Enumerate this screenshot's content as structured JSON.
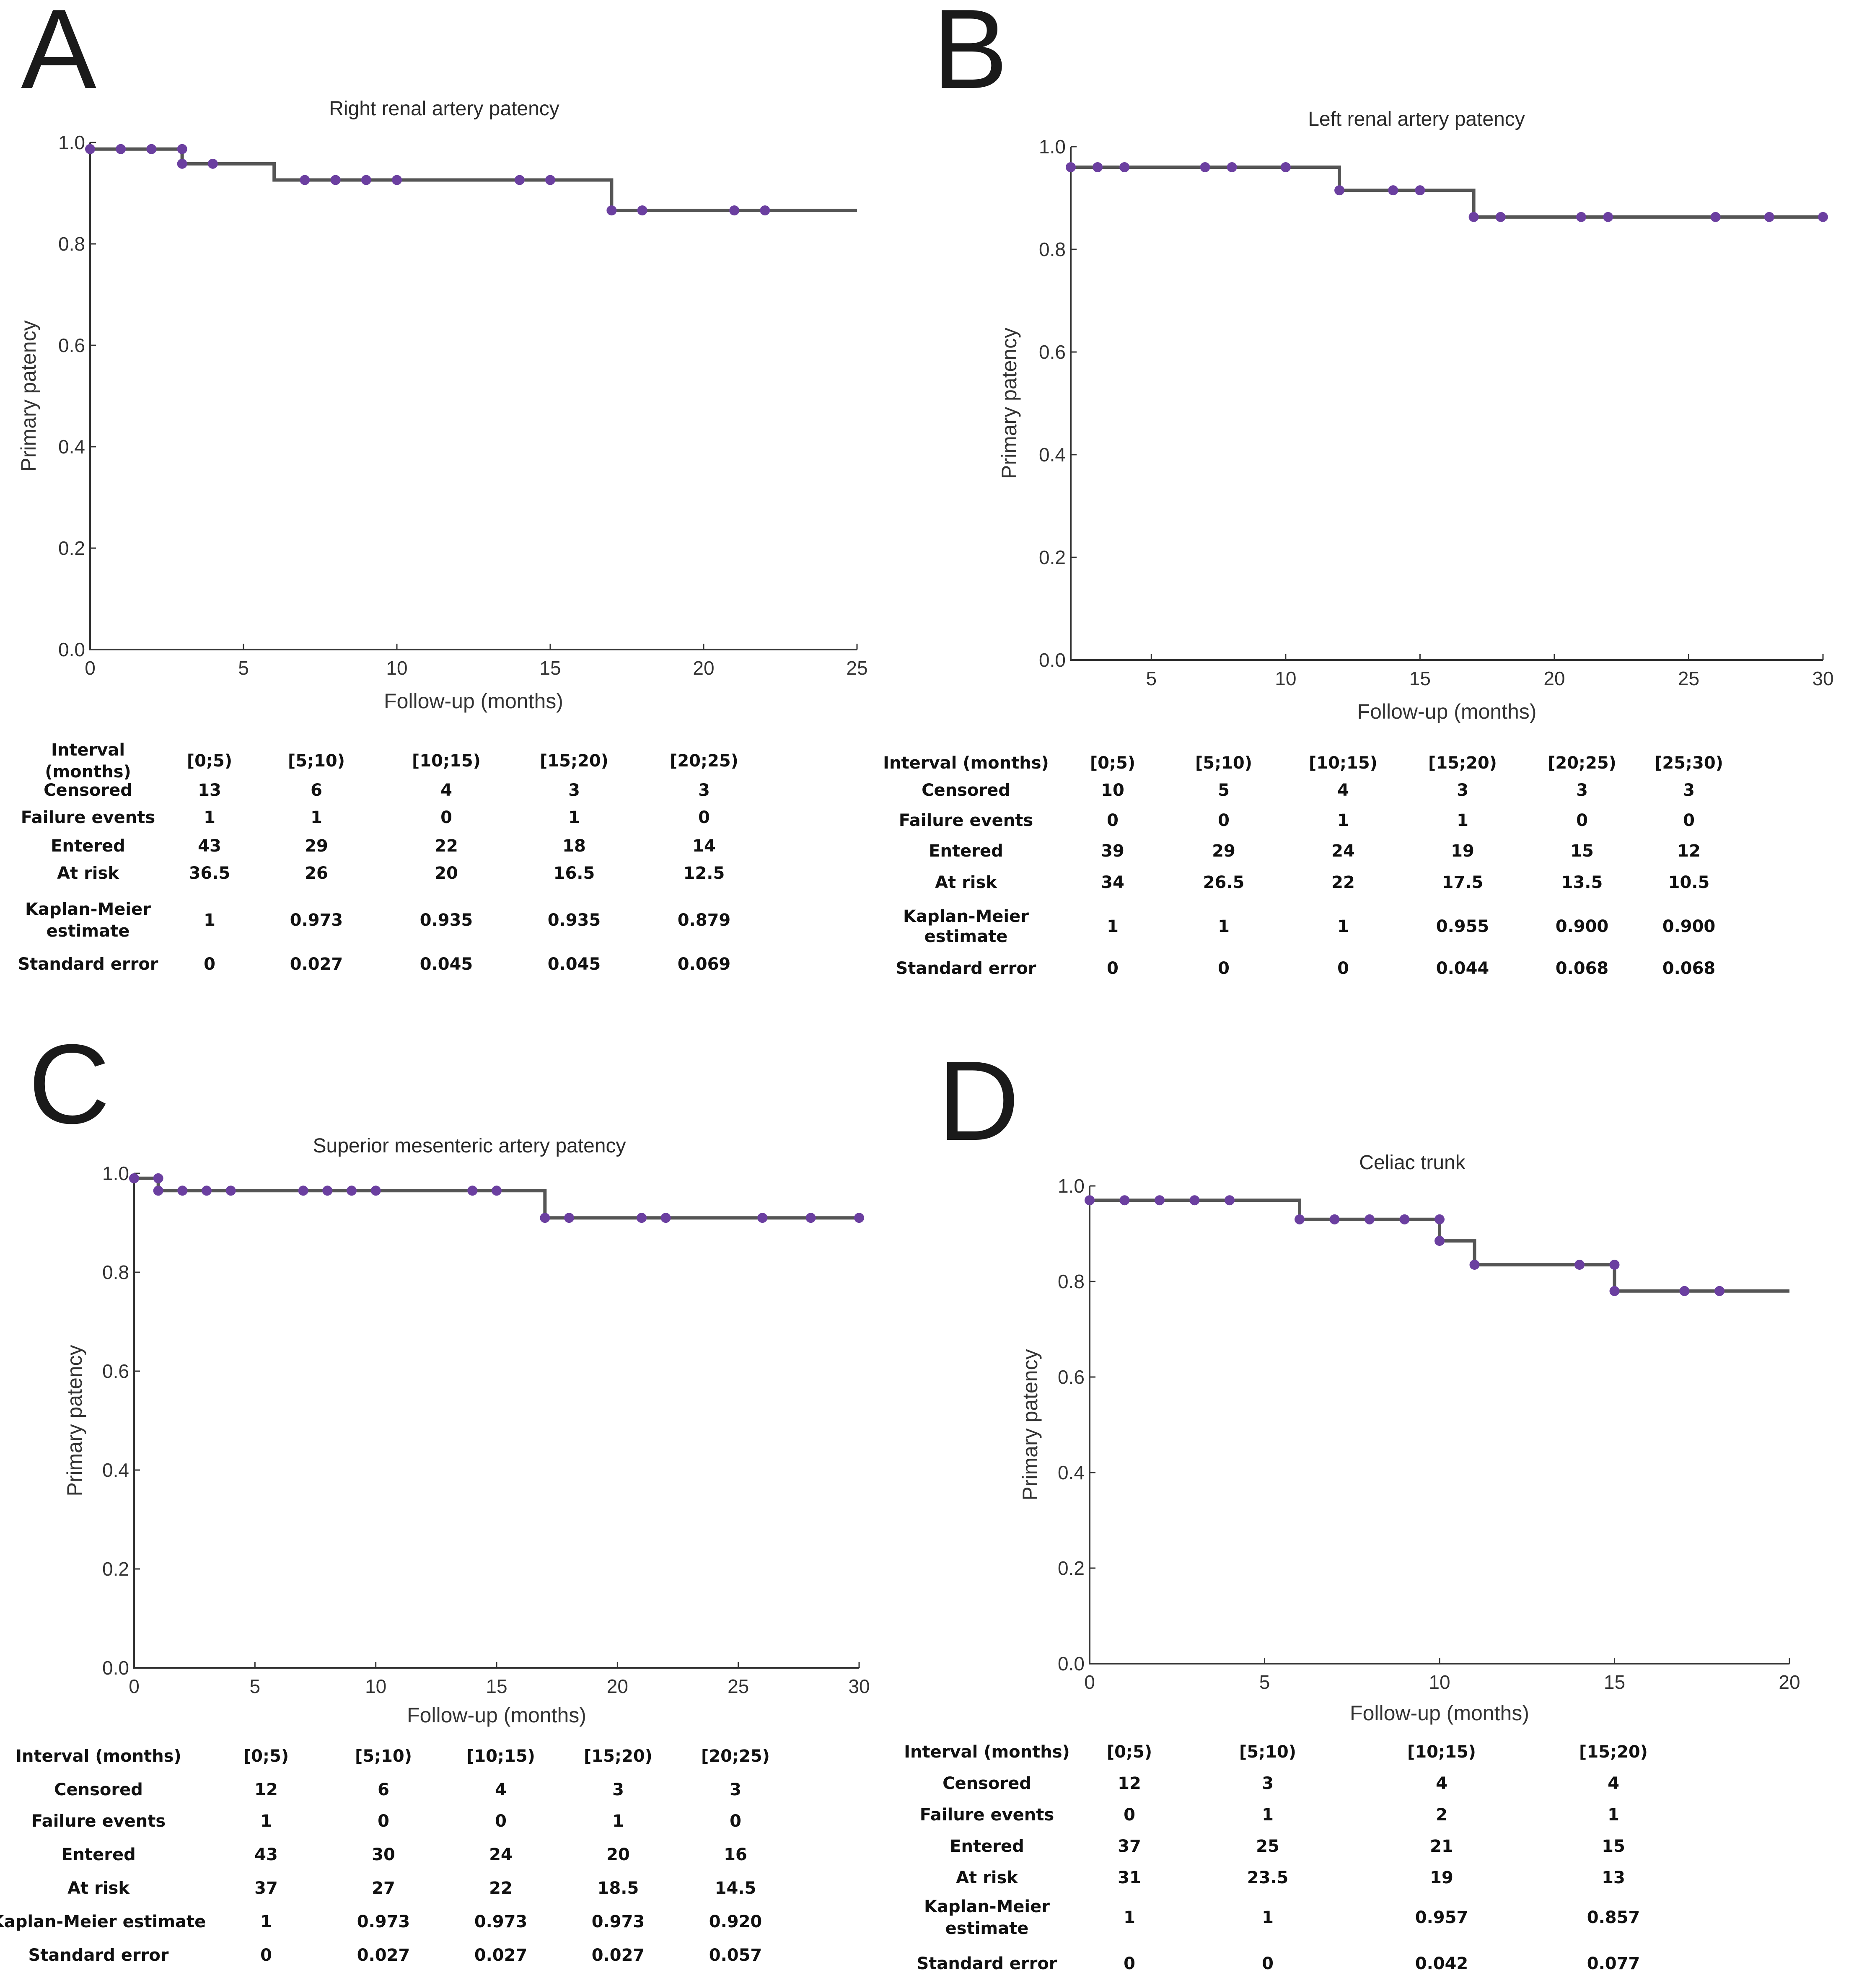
{
  "panels": [
    {
      "letter": "A",
      "title": "Right renal artery patency",
      "xlabel": "Follow-up (months)",
      "ylabel": "Primary patency",
      "chart_data": {
        "type": "line",
        "title": "Right renal artery patency",
        "xlabel": "Follow-up (months)",
        "ylabel": "Primary patency",
        "xlim": [
          0,
          25
        ],
        "ylim": [
          0,
          1
        ],
        "xticks": [
          "0",
          "5",
          "10",
          "15",
          "20",
          "25"
        ],
        "yticks": [
          "0.0",
          "0.2",
          "0.4",
          "0.6",
          "0.8",
          "1.0"
        ],
        "step_x": [
          0,
          3,
          6,
          17,
          25
        ],
        "step_y": [
          0.987,
          0.958,
          0.926,
          0.866,
          0.866
        ],
        "censored_x": [
          0,
          1,
          2,
          3,
          3,
          4,
          7,
          8,
          9,
          10,
          14,
          15,
          17,
          18,
          21,
          22
        ],
        "censored_y": [
          0.987,
          0.987,
          0.987,
          0.987,
          0.958,
          0.958,
          0.926,
          0.926,
          0.926,
          0.926,
          0.926,
          0.926,
          0.866,
          0.866,
          0.866,
          0.866
        ]
      },
      "table": {
        "row_labels": [
          "Interval\n(months)",
          "Censored",
          "Failure events",
          "Entered",
          "At risk",
          "Kaplan-Meier\nestimate",
          "Standard error"
        ],
        "columns": [
          "[0;5)",
          "[5;10)",
          "[10;15)",
          "[15;20)",
          "[20;25)"
        ],
        "rows": [
          [
            "13",
            "6",
            "4",
            "3",
            "3"
          ],
          [
            "1",
            "1",
            "0",
            "1",
            "0"
          ],
          [
            "43",
            "29",
            "22",
            "18",
            "14"
          ],
          [
            "36.5",
            "26",
            "20",
            "16.5",
            "12.5"
          ],
          [
            "1",
            "0.973",
            "0.935",
            "0.935",
            "0.879"
          ],
          [
            "0",
            "0.027",
            "0.045",
            "0.045",
            "0.069"
          ]
        ]
      }
    },
    {
      "letter": "B",
      "title": "Left renal artery patency",
      "xlabel": "Follow-up (months)",
      "ylabel": "Primary patency",
      "chart_data": {
        "type": "line",
        "title": "Left renal artery patency",
        "xlabel": "Follow-up (months)",
        "ylabel": "Primary patency",
        "xlim": [
          2,
          30
        ],
        "ylim": [
          0,
          1
        ],
        "xticks": [
          "5",
          "10",
          "15",
          "20",
          "25",
          "30"
        ],
        "yticks": [
          "0.0",
          "0.2",
          "0.4",
          "0.6",
          "0.8",
          "1.0"
        ],
        "step_x": [
          2,
          12,
          17,
          30
        ],
        "step_y": [
          0.96,
          0.915,
          0.863,
          0.863
        ],
        "censored_x": [
          2,
          3,
          4,
          7,
          8,
          10,
          12,
          14,
          15,
          17,
          18,
          21,
          22,
          26,
          28,
          30
        ],
        "censored_y": [
          0.96,
          0.96,
          0.96,
          0.96,
          0.96,
          0.96,
          0.915,
          0.915,
          0.915,
          0.863,
          0.863,
          0.863,
          0.863,
          0.863,
          0.863,
          0.863
        ]
      },
      "table": {
        "row_labels": [
          "Interval (months)",
          "Censored",
          "Failure events",
          "Entered",
          "At risk",
          "Kaplan-Meier\nestimate",
          "Standard error"
        ],
        "columns": [
          "[0;5)",
          "[5;10)",
          "[10;15)",
          "[15;20)",
          "[20;25)",
          "[25;30)"
        ],
        "rows": [
          [
            "10",
            "5",
            "4",
            "3",
            "3",
            "3"
          ],
          [
            "0",
            "0",
            "1",
            "1",
            "0",
            "0"
          ],
          [
            "39",
            "29",
            "24",
            "19",
            "15",
            "12"
          ],
          [
            "34",
            "26.5",
            "22",
            "17.5",
            "13.5",
            "10.5"
          ],
          [
            "1",
            "1",
            "1",
            "0.955",
            "0.900",
            "0.900"
          ],
          [
            "0",
            "0",
            "0",
            "0.044",
            "0.068",
            "0.068"
          ]
        ]
      }
    },
    {
      "letter": "C",
      "title": "Superior mesenteric artery patency",
      "xlabel": "Follow-up (months)",
      "ylabel": "Primary patency",
      "chart_data": {
        "type": "line",
        "title": "Superior mesenteric artery patency",
        "xlabel": "Follow-up (months)",
        "ylabel": "Primary patency",
        "xlim": [
          0,
          30
        ],
        "ylim": [
          0,
          1
        ],
        "xticks": [
          "0",
          "5",
          "10",
          "15",
          "20",
          "25",
          "30"
        ],
        "yticks": [
          "0.0",
          "0.2",
          "0.4",
          "0.6",
          "0.8",
          "1.0"
        ],
        "step_x": [
          0,
          1,
          17,
          30
        ],
        "step_y": [
          0.99,
          0.965,
          0.91,
          0.91
        ],
        "censored_x": [
          0,
          1,
          1,
          2,
          3,
          4,
          7,
          8,
          9,
          10,
          14,
          15,
          17,
          18,
          21,
          22,
          26,
          28,
          30
        ],
        "censored_y": [
          0.99,
          0.99,
          0.965,
          0.965,
          0.965,
          0.965,
          0.965,
          0.965,
          0.965,
          0.965,
          0.965,
          0.965,
          0.91,
          0.91,
          0.91,
          0.91,
          0.91,
          0.91,
          0.91
        ]
      },
      "table": {
        "row_labels": [
          "Interval (months)",
          "Censored",
          "Failure events",
          "Entered",
          "At risk",
          "Kaplan-Meier estimate",
          "Standard error"
        ],
        "columns": [
          "[0;5)",
          "[5;10)",
          "[10;15)",
          "[15;20)",
          "[20;25)"
        ],
        "rows": [
          [
            "12",
            "6",
            "4",
            "3",
            "3"
          ],
          [
            "1",
            "0",
            "0",
            "1",
            "0"
          ],
          [
            "43",
            "30",
            "24",
            "20",
            "16"
          ],
          [
            "37",
            "27",
            "22",
            "18.5",
            "14.5"
          ],
          [
            "1",
            "0.973",
            "0.973",
            "0.973",
            "0.920"
          ],
          [
            "0",
            "0.027",
            "0.027",
            "0.027",
            "0.057"
          ]
        ]
      }
    },
    {
      "letter": "D",
      "title": "Celiac trunk",
      "xlabel": "Follow-up (months)",
      "ylabel": "Primary patency",
      "chart_data": {
        "type": "line",
        "title": "Celiac trunk",
        "xlabel": "Follow-up (months)",
        "ylabel": "Primary patency",
        "xlim": [
          0,
          20
        ],
        "ylim": [
          0,
          1
        ],
        "xticks": [
          "0",
          "5",
          "10",
          "15",
          "20"
        ],
        "yticks": [
          "0.0",
          "0.2",
          "0.4",
          "0.6",
          "0.8",
          "1.0"
        ],
        "step_x": [
          0,
          6,
          10,
          11,
          15,
          20
        ],
        "step_y": [
          0.97,
          0.93,
          0.885,
          0.835,
          0.78,
          0.78
        ],
        "censored_x": [
          0,
          1,
          2,
          3,
          4,
          6,
          7,
          8,
          9,
          10,
          10,
          11,
          14,
          15,
          15,
          17,
          18
        ],
        "censored_y": [
          0.97,
          0.97,
          0.97,
          0.97,
          0.97,
          0.93,
          0.93,
          0.93,
          0.93,
          0.93,
          0.885,
          0.835,
          0.835,
          0.835,
          0.78,
          0.78,
          0.78
        ]
      },
      "table": {
        "row_labels": [
          "Interval (months)",
          "Censored",
          "Failure events",
          "Entered",
          "At risk",
          "Kaplan-Meier\nestimate",
          "Standard error"
        ],
        "columns": [
          "[0;5)",
          "[5;10)",
          "[10;15)",
          "[15;20)"
        ],
        "rows": [
          [
            "12",
            "3",
            "4",
            "4"
          ],
          [
            "0",
            "1",
            "2",
            "1"
          ],
          [
            "37",
            "25",
            "21",
            "15"
          ],
          [
            "31",
            "23.5",
            "19",
            "13"
          ],
          [
            "1",
            "1",
            "0.957",
            "0.857"
          ],
          [
            "0",
            "0",
            "0.042",
            "0.077"
          ]
        ]
      }
    }
  ]
}
